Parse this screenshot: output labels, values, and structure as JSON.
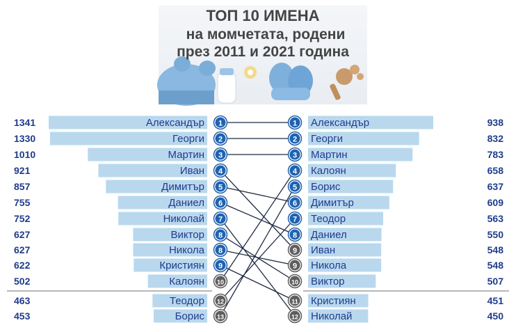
{
  "title": {
    "line1": "ТОП 10 ИМЕНА",
    "line2": "на момчетата, родени",
    "line3": "през 2011 и 2021 година"
  },
  "colors": {
    "bar": "#b9d8ee",
    "bar_border": "#9cc6e4",
    "number": "#1f3c8c",
    "name": "#1f3c8c",
    "badge_top": "#1f62b0",
    "badge_bottom": "#5e5e5e",
    "connector": "#1f2a44",
    "divider": "#8c8c8c"
  },
  "chart_data": {
    "type": "bar",
    "title": "ТОП 10 ИМЕНА на момчетата, родени през 2011 и 2021 година",
    "series": [
      {
        "year": "2011",
        "names": [
          "Александър",
          "Георги",
          "Мартин",
          "Иван",
          "Димитър",
          "Даниел",
          "Николай",
          "Виктор",
          "Никола",
          "Кристиян",
          "Калоян",
          "Теодор",
          "Борис"
        ],
        "values": [
          1341,
          1330,
          1010,
          921,
          857,
          755,
          752,
          627,
          627,
          622,
          502,
          463,
          453
        ],
        "ranks": [
          "1",
          "2",
          "3",
          "4",
          "5",
          "6",
          "7",
          "8",
          "8",
          "9",
          "10",
          "12",
          "13"
        ]
      },
      {
        "year": "2021",
        "names": [
          "Александър",
          "Георги",
          "Мартин",
          "Калоян",
          "Борис",
          "Димитър",
          "Теодор",
          "Даниел",
          "Иван",
          "Никола",
          "Виктор",
          "Кристиян",
          "Николай"
        ],
        "values": [
          938,
          832,
          783,
          658,
          637,
          609,
          563,
          550,
          548,
          548,
          507,
          451,
          450
        ],
        "ranks": [
          "1",
          "2",
          "3",
          "4",
          "5",
          "6",
          "7",
          "8",
          "9",
          "9",
          "10",
          "11",
          "12"
        ]
      }
    ]
  }
}
